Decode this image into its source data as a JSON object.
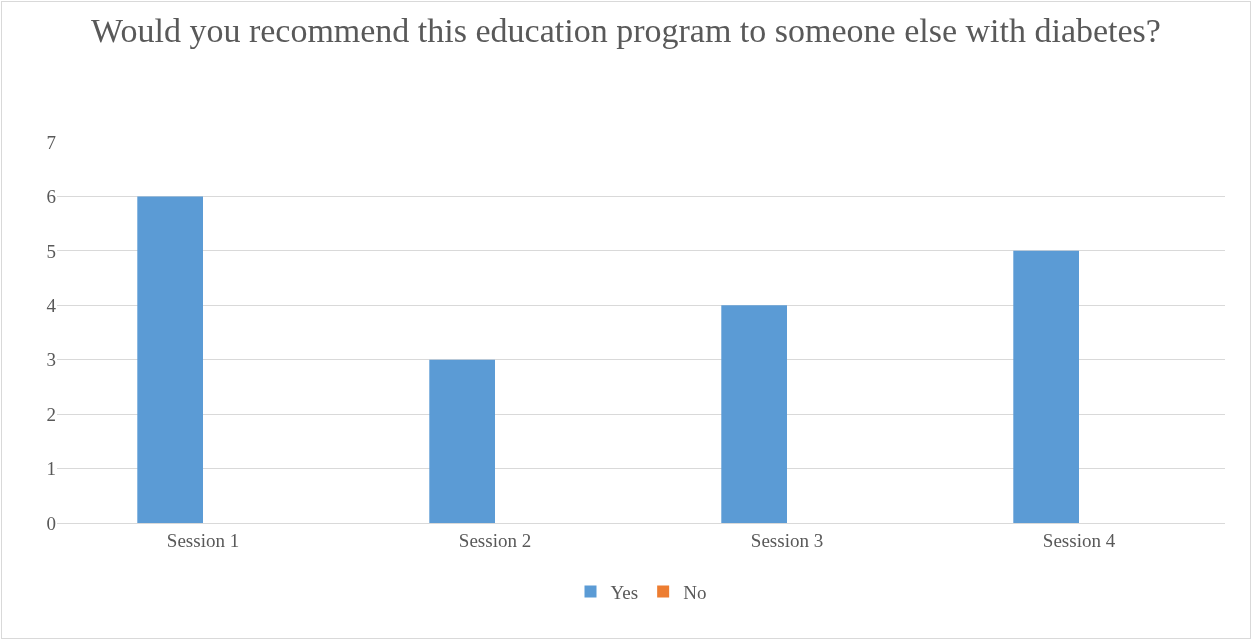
{
  "chart_data": {
    "type": "bar",
    "title": "Would you recommend this education program to someone else with diabetes?",
    "categories": [
      "Session 1",
      "Session 2",
      "Session 3",
      "Session 4"
    ],
    "series": [
      {
        "name": "Yes",
        "color": "#5b9bd5",
        "values": [
          6,
          3,
          4,
          5
        ]
      },
      {
        "name": "No",
        "color": "#ed7d31",
        "values": [
          0,
          0,
          0,
          0
        ]
      }
    ],
    "ylim": [
      0,
      7
    ],
    "yticks": [
      0,
      1,
      2,
      3,
      4,
      5,
      6,
      7
    ],
    "grid": "y",
    "legend": "bottom"
  }
}
